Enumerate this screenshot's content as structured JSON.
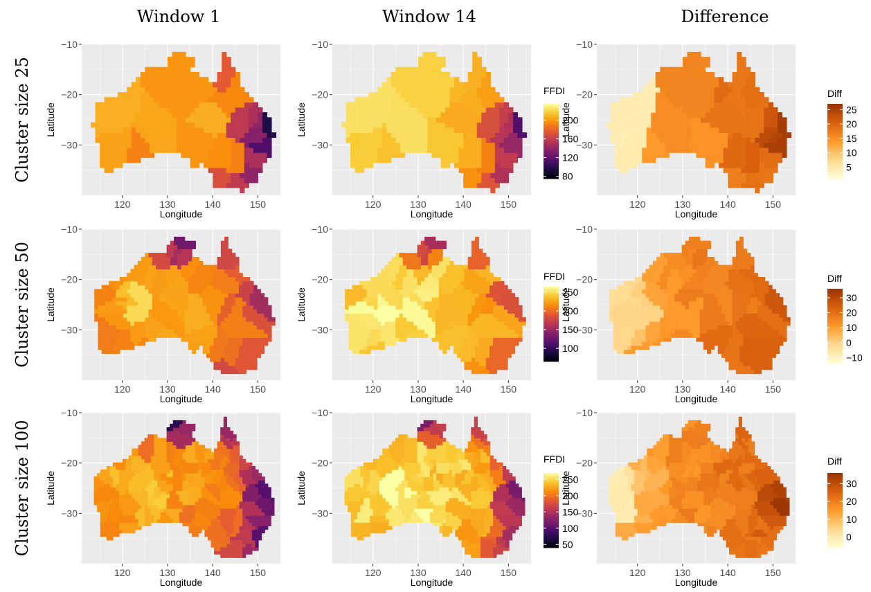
{
  "columns": [
    "Window 1",
    "Window 14",
    "Difference"
  ],
  "rows": [
    "Cluster size 25",
    "Cluster size 50",
    "Cluster size 100"
  ],
  "axes": {
    "xlabel": "Longitude",
    "ylabel": "Latitude",
    "xticks": [
      120,
      130,
      140,
      150
    ],
    "yticks": [
      -10,
      -20,
      -30
    ],
    "xlim": [
      111,
      155
    ],
    "ylim": [
      -40,
      -10
    ]
  },
  "chart_data": {
    "type": "heatmap",
    "description_of_content": "Choropleth maps of Australia showing clustered FFDI values",
    "legends": [
      {
        "row": 0,
        "title": "FFDI",
        "labels": [
          200,
          160,
          120,
          80
        ],
        "range": [
          75,
          235
        ],
        "palette": "inferno"
      },
      {
        "row": 0,
        "title": "Diff",
        "labels": [
          25,
          20,
          15,
          10,
          5
        ],
        "range": [
          1,
          27
        ],
        "palette": "orange"
      },
      {
        "row": 1,
        "title": "FFDI",
        "labels": [
          250,
          200,
          150,
          100
        ],
        "range": [
          65,
          265
        ],
        "palette": "inferno"
      },
      {
        "row": 1,
        "title": "Diff",
        "labels": [
          30,
          20,
          10,
          0,
          -10
        ],
        "range": [
          -14,
          36
        ],
        "palette": "orange"
      },
      {
        "row": 2,
        "title": "FFDI",
        "labels": [
          250,
          200,
          150,
          100,
          50
        ],
        "range": [
          40,
          270
        ],
        "palette": "inferno"
      },
      {
        "row": 2,
        "title": "Diff",
        "labels": [
          30,
          20,
          10,
          0
        ],
        "range": [
          -6,
          36
        ],
        "palette": "orange"
      }
    ]
  },
  "colors": {
    "panel_background": "#ebebeb",
    "grid": "#ffffff"
  }
}
